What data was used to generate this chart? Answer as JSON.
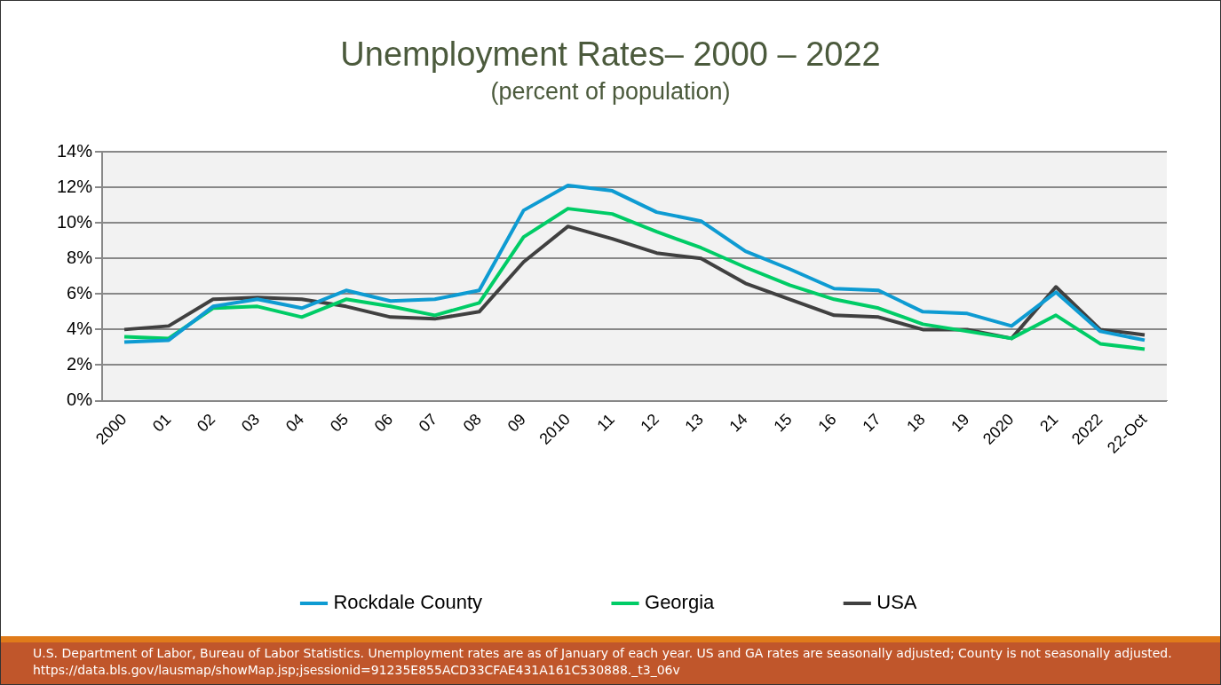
{
  "chart_data": {
    "type": "line",
    "title": "Unemployment Rates– 2000 – 2022",
    "subtitle": "(percent of population)",
    "categories": [
      "2000",
      "01",
      "02",
      "03",
      "04",
      "05",
      "06",
      "07",
      "08",
      "09",
      "2010",
      "11",
      "12",
      "13",
      "14",
      "15",
      "16",
      "17",
      "18",
      "19",
      "2020",
      "21",
      "2022",
      "22-Oct"
    ],
    "series": [
      {
        "name": "Rockdale County",
        "color": "#0e9bd2",
        "values": [
          3.3,
          3.4,
          5.3,
          5.7,
          5.2,
          6.2,
          5.6,
          5.7,
          6.2,
          10.7,
          12.1,
          11.8,
          10.6,
          10.1,
          8.4,
          7.4,
          6.3,
          6.2,
          5.0,
          4.9,
          4.2,
          6.1,
          3.9,
          3.4
        ]
      },
      {
        "name": "Georgia",
        "color": "#00cc66",
        "values": [
          3.6,
          3.5,
          5.2,
          5.3,
          4.7,
          5.7,
          5.3,
          4.8,
          5.5,
          9.2,
          10.8,
          10.5,
          9.5,
          8.6,
          7.5,
          6.5,
          5.7,
          5.2,
          4.3,
          3.9,
          3.5,
          4.8,
          3.2,
          2.9
        ]
      },
      {
        "name": "USA",
        "color": "#404040",
        "values": [
          4.0,
          4.2,
          5.7,
          5.8,
          5.7,
          5.3,
          4.7,
          4.6,
          5.0,
          7.8,
          9.8,
          9.1,
          8.3,
          8.0,
          6.6,
          5.7,
          4.8,
          4.7,
          4.0,
          4.0,
          3.5,
          6.4,
          4.0,
          3.7
        ]
      }
    ],
    "ylim": [
      0,
      14
    ],
    "yticks": [
      {
        "value": 0,
        "label": "0%"
      },
      {
        "value": 2,
        "label": "2%"
      },
      {
        "value": 4,
        "label": "4%"
      },
      {
        "value": 6,
        "label": "6%"
      },
      {
        "value": 8,
        "label": "8%"
      },
      {
        "value": 10,
        "label": "10%"
      },
      {
        "value": 12,
        "label": "12%"
      },
      {
        "value": 14,
        "label": "14%"
      }
    ],
    "grid": "y",
    "legend": "bottom",
    "marker": "none",
    "line_style": "solid",
    "annotations": [
      "U.S. Department of Labor, Bureau of Labor Statistics. Unemployment rates are as of January of each year. US and GA rates are seasonally adjusted; County is  not seasonally adjusted.  https://data.bls.gov/lausmap/showMap.jsp;jsessionid=91235E855ACD33CFAE431A161C530888._t3_06v"
    ]
  }
}
